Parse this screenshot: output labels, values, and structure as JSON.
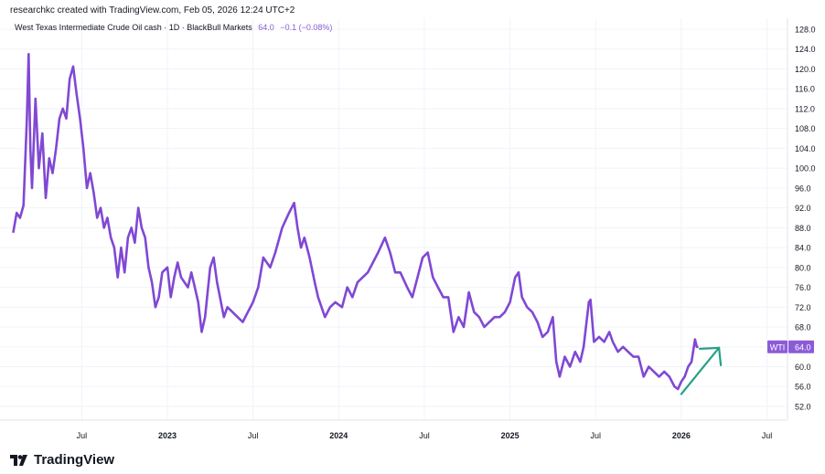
{
  "credit": "researchkc created with TradingView.com, Feb 05, 2026 12:24 UTC+2",
  "legend": {
    "symbol_desc": "West Texas Intermediate Crude Oil cash · 1D · BlackBull Markets",
    "last": "64.0",
    "change": "−0.1 (−0.08%)"
  },
  "price_tag": {
    "symbol": "WTI",
    "value": "64.0"
  },
  "brand": "TradingView",
  "colors": {
    "line": "#8048d4",
    "arrow": "#26a085",
    "grid": "#f0f3fa",
    "tag": "#8b5cd6"
  },
  "chart_data": {
    "type": "line",
    "title": "West Texas Intermediate Crude Oil cash · 1D · BlackBull Markets",
    "xlabel": "",
    "ylabel": "",
    "ylim": [
      50,
      130
    ],
    "y_ticks": [
      "128.0",
      "124.0",
      "120.0",
      "116.0",
      "112.0",
      "108.0",
      "104.0",
      "100.0",
      "96.0",
      "92.0",
      "88.0",
      "84.0",
      "80.0",
      "76.0",
      "72.0",
      "68.0",
      "64.0",
      "60.0",
      "56.0",
      "52.0"
    ],
    "x_ticks": [
      {
        "label": "Jul",
        "t": 2022.5,
        "bold": false
      },
      {
        "label": "2023",
        "t": 2023.0,
        "bold": true
      },
      {
        "label": "Jul",
        "t": 2023.5,
        "bold": false
      },
      {
        "label": "2024",
        "t": 2024.0,
        "bold": true
      },
      {
        "label": "Jul",
        "t": 2024.5,
        "bold": false
      },
      {
        "label": "2025",
        "t": 2025.0,
        "bold": true
      },
      {
        "label": "Jul",
        "t": 2025.5,
        "bold": false
      },
      {
        "label": "2026",
        "t": 2026.0,
        "bold": true
      },
      {
        "label": "Jul",
        "t": 2026.5,
        "bold": false
      }
    ],
    "series": [
      {
        "name": "WTI",
        "points": [
          [
            2022.1,
            87
          ],
          [
            2022.12,
            91
          ],
          [
            2022.14,
            90
          ],
          [
            2022.16,
            92.5
          ],
          [
            2022.18,
            110
          ],
          [
            2022.19,
            123
          ],
          [
            2022.2,
            104
          ],
          [
            2022.21,
            96
          ],
          [
            2022.23,
            114
          ],
          [
            2022.25,
            100
          ],
          [
            2022.27,
            107
          ],
          [
            2022.29,
            94
          ],
          [
            2022.31,
            102
          ],
          [
            2022.33,
            99
          ],
          [
            2022.35,
            104
          ],
          [
            2022.37,
            110
          ],
          [
            2022.39,
            112
          ],
          [
            2022.41,
            110
          ],
          [
            2022.43,
            118
          ],
          [
            2022.45,
            120.5
          ],
          [
            2022.47,
            115
          ],
          [
            2022.49,
            110
          ],
          [
            2022.51,
            104
          ],
          [
            2022.53,
            96
          ],
          [
            2022.55,
            99
          ],
          [
            2022.57,
            95
          ],
          [
            2022.59,
            90
          ],
          [
            2022.61,
            92
          ],
          [
            2022.63,
            88
          ],
          [
            2022.65,
            90
          ],
          [
            2022.67,
            86
          ],
          [
            2022.69,
            84
          ],
          [
            2022.71,
            78
          ],
          [
            2022.73,
            84
          ],
          [
            2022.75,
            79
          ],
          [
            2022.77,
            86
          ],
          [
            2022.79,
            88
          ],
          [
            2022.81,
            85
          ],
          [
            2022.83,
            92
          ],
          [
            2022.85,
            88
          ],
          [
            2022.87,
            86
          ],
          [
            2022.89,
            80
          ],
          [
            2022.91,
            77
          ],
          [
            2022.93,
            72
          ],
          [
            2022.95,
            74
          ],
          [
            2022.97,
            79
          ],
          [
            2023.0,
            80
          ],
          [
            2023.02,
            74
          ],
          [
            2023.04,
            78
          ],
          [
            2023.06,
            81
          ],
          [
            2023.08,
            78
          ],
          [
            2023.1,
            77
          ],
          [
            2023.12,
            76
          ],
          [
            2023.14,
            79
          ],
          [
            2023.16,
            76
          ],
          [
            2023.18,
            73
          ],
          [
            2023.2,
            67
          ],
          [
            2023.22,
            70
          ],
          [
            2023.25,
            80
          ],
          [
            2023.27,
            82
          ],
          [
            2023.29,
            77
          ],
          [
            2023.33,
            70
          ],
          [
            2023.35,
            72
          ],
          [
            2023.38,
            71
          ],
          [
            2023.41,
            70
          ],
          [
            2023.44,
            69
          ],
          [
            2023.47,
            71
          ],
          [
            2023.5,
            73
          ],
          [
            2023.53,
            76
          ],
          [
            2023.56,
            82
          ],
          [
            2023.6,
            80
          ],
          [
            2023.63,
            83
          ],
          [
            2023.67,
            88
          ],
          [
            2023.71,
            91
          ],
          [
            2023.74,
            93
          ],
          [
            2023.76,
            88
          ],
          [
            2023.78,
            84
          ],
          [
            2023.8,
            86
          ],
          [
            2023.83,
            82
          ],
          [
            2023.86,
            77
          ],
          [
            2023.88,
            74
          ],
          [
            2023.92,
            70
          ],
          [
            2023.95,
            72
          ],
          [
            2023.98,
            73
          ],
          [
            2024.02,
            72
          ],
          [
            2024.05,
            76
          ],
          [
            2024.08,
            74
          ],
          [
            2024.11,
            77
          ],
          [
            2024.14,
            78
          ],
          [
            2024.17,
            79
          ],
          [
            2024.2,
            81
          ],
          [
            2024.23,
            83
          ],
          [
            2024.27,
            86
          ],
          [
            2024.3,
            83
          ],
          [
            2024.33,
            79
          ],
          [
            2024.36,
            79
          ],
          [
            2024.4,
            76
          ],
          [
            2024.43,
            74
          ],
          [
            2024.46,
            78
          ],
          [
            2024.49,
            82
          ],
          [
            2024.52,
            83
          ],
          [
            2024.55,
            78
          ],
          [
            2024.58,
            76
          ],
          [
            2024.61,
            74
          ],
          [
            2024.64,
            74
          ],
          [
            2024.67,
            67
          ],
          [
            2024.7,
            70
          ],
          [
            2024.73,
            68
          ],
          [
            2024.76,
            75
          ],
          [
            2024.79,
            71
          ],
          [
            2024.82,
            70
          ],
          [
            2024.85,
            68
          ],
          [
            2024.88,
            69
          ],
          [
            2024.91,
            70
          ],
          [
            2024.94,
            70
          ],
          [
            2024.97,
            71
          ],
          [
            2025.0,
            73
          ],
          [
            2025.03,
            78
          ],
          [
            2025.05,
            79
          ],
          [
            2025.07,
            74
          ],
          [
            2025.1,
            72
          ],
          [
            2025.13,
            71
          ],
          [
            2025.16,
            69
          ],
          [
            2025.19,
            66
          ],
          [
            2025.22,
            67
          ],
          [
            2025.25,
            70
          ],
          [
            2025.27,
            61
          ],
          [
            2025.29,
            58
          ],
          [
            2025.32,
            62
          ],
          [
            2025.35,
            60
          ],
          [
            2025.38,
            63
          ],
          [
            2025.41,
            61
          ],
          [
            2025.43,
            64
          ],
          [
            2025.46,
            73
          ],
          [
            2025.47,
            73.5
          ],
          [
            2025.49,
            65
          ],
          [
            2025.52,
            66
          ],
          [
            2025.55,
            65
          ],
          [
            2025.58,
            67
          ],
          [
            2025.6,
            65
          ],
          [
            2025.63,
            63
          ],
          [
            2025.66,
            64
          ],
          [
            2025.69,
            63
          ],
          [
            2025.72,
            62
          ],
          [
            2025.75,
            62
          ],
          [
            2025.78,
            58
          ],
          [
            2025.81,
            60
          ],
          [
            2025.84,
            59
          ],
          [
            2025.87,
            58
          ],
          [
            2025.9,
            59
          ],
          [
            2025.93,
            58
          ],
          [
            2025.96,
            56
          ],
          [
            2025.98,
            55.5
          ],
          [
            2026.0,
            57
          ],
          [
            2026.02,
            58
          ],
          [
            2026.04,
            60
          ],
          [
            2026.06,
            61
          ],
          [
            2026.08,
            65.5
          ],
          [
            2026.09,
            64
          ],
          [
            2026.1,
            64
          ]
        ]
      }
    ],
    "annotation": {
      "type": "arrow",
      "from": [
        2026.0,
        54.5
      ],
      "to": [
        2026.22,
        63.8
      ]
    }
  }
}
